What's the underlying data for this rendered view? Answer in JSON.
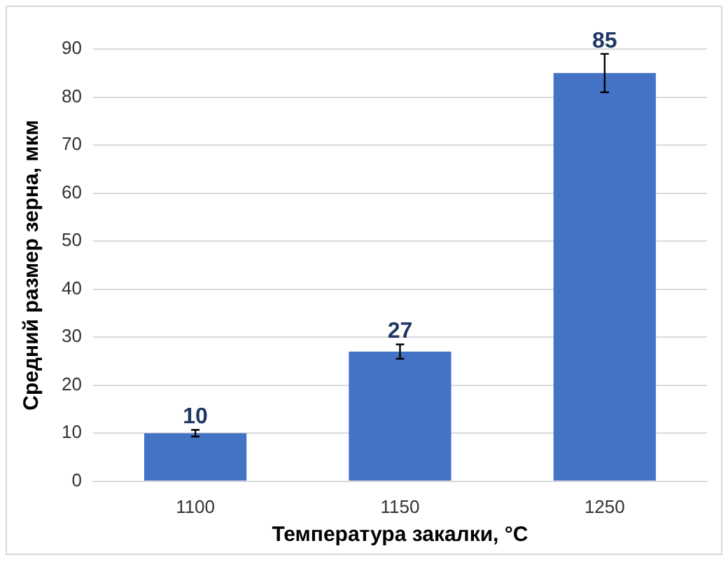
{
  "chart_data": {
    "type": "bar",
    "xlabel": "Температура закалки, °С",
    "ylabel": "Средний размер зерна, мкм",
    "categories": [
      "1100",
      "1150",
      "1250"
    ],
    "values": [
      10,
      27,
      85
    ],
    "errors": [
      0.7,
      1.5,
      4
    ],
    "color": "#4472c4",
    "ylim": [
      0,
      90
    ],
    "yticks": [
      0,
      10,
      20,
      30,
      40,
      50,
      60,
      70,
      80,
      90
    ],
    "grid": "y",
    "data_labels": true
  }
}
